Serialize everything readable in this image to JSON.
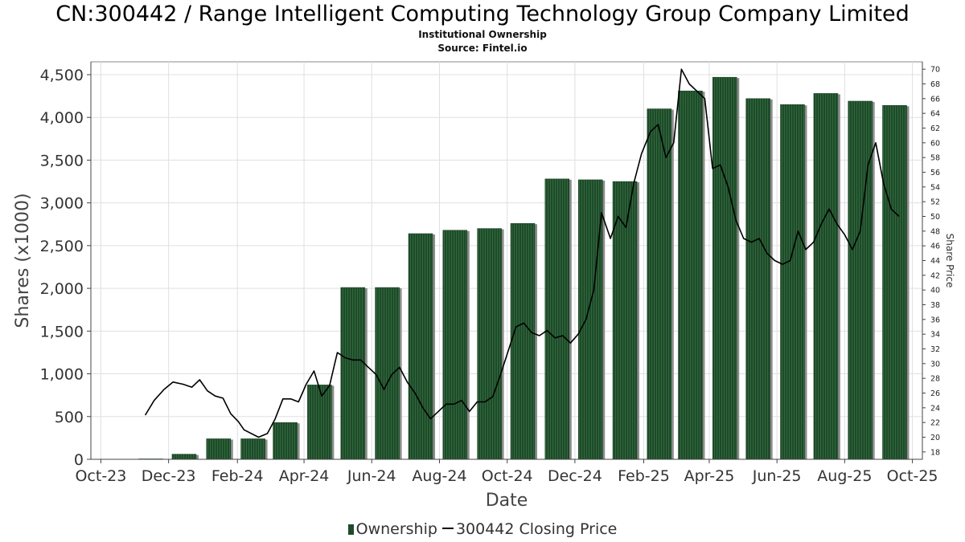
{
  "title": "CN:300442 / Range Intelligent Computing Technology Group Company Limited",
  "subtitle": "Institutional Ownership",
  "source": "Source: Fintel.io",
  "chart_data": {
    "type": "bar",
    "xlabel": "Date",
    "ylabel": "Shares (x1000)",
    "y2label": "Share Price",
    "ylim": [
      0,
      4650
    ],
    "y2lim": [
      17,
      71
    ],
    "yticks": [
      0,
      500,
      1000,
      1500,
      2000,
      2500,
      3000,
      3500,
      4000,
      4500
    ],
    "ytick_labels": [
      "0",
      "500",
      "1,000",
      "1,500",
      "2,000",
      "2,500",
      "3,000",
      "3,500",
      "4,000",
      "4,500"
    ],
    "y2ticks": [
      18,
      20,
      22,
      24,
      26,
      28,
      30,
      32,
      34,
      36,
      38,
      40,
      42,
      44,
      46,
      48,
      50,
      52,
      54,
      56,
      58,
      60,
      62,
      64,
      66,
      68,
      70
    ],
    "xlim": [
      "2023-09-22",
      "2025-10-10"
    ],
    "xticks": [
      "2023-10-01",
      "2023-12-01",
      "2024-02-01",
      "2024-04-01",
      "2024-06-01",
      "2024-08-01",
      "2024-10-01",
      "2024-12-01",
      "2025-02-01",
      "2025-04-01",
      "2025-06-01",
      "2025-08-01",
      "2025-10-01"
    ],
    "xtick_labels": [
      "Oct-23",
      "Dec-23",
      "Feb-24",
      "Apr-24",
      "Jun-24",
      "Aug-24",
      "Oct-24",
      "Dec-24",
      "Feb-25",
      "Apr-25",
      "Jun-25",
      "Aug-25",
      "Oct-25"
    ],
    "grid": true,
    "legend_position": "bottom",
    "series": [
      {
        "name": "Ownership",
        "type": "bar",
        "color": "#1f4a2a",
        "x": [
          "2023-11-15",
          "2023-12-15",
          "2024-01-15",
          "2024-02-15",
          "2024-03-15",
          "2024-04-15",
          "2024-05-15",
          "2024-06-15",
          "2024-07-15",
          "2024-08-15",
          "2024-09-15",
          "2024-10-15",
          "2024-11-15",
          "2024-12-15",
          "2025-01-15",
          "2025-02-15",
          "2025-03-15",
          "2025-04-15",
          "2025-05-15",
          "2025-06-15",
          "2025-07-15",
          "2025-08-15",
          "2025-09-15"
        ],
        "values": [
          5,
          60,
          240,
          240,
          430,
          870,
          2010,
          2010,
          2640,
          2680,
          2700,
          2760,
          3280,
          3270,
          3250,
          4100,
          4310,
          4470,
          4220,
          4150,
          4280,
          4190,
          4140
        ]
      },
      {
        "name": "300442 Closing Price",
        "type": "line",
        "color": "#000000",
        "axis": "right",
        "x": [
          "2023-11-10",
          "2023-11-18",
          "2023-11-27",
          "2023-12-05",
          "2023-12-14",
          "2023-12-22",
          "2023-12-29",
          "2024-01-05",
          "2024-01-12",
          "2024-01-19",
          "2024-01-26",
          "2024-02-02",
          "2024-02-07",
          "2024-02-20",
          "2024-02-28",
          "2024-03-06",
          "2024-03-13",
          "2024-03-20",
          "2024-03-27",
          "2024-04-03",
          "2024-04-10",
          "2024-04-17",
          "2024-04-24",
          "2024-05-01",
          "2024-05-08",
          "2024-05-15",
          "2024-05-22",
          "2024-05-29",
          "2024-06-05",
          "2024-06-12",
          "2024-06-19",
          "2024-06-26",
          "2024-07-03",
          "2024-07-10",
          "2024-07-17",
          "2024-07-24",
          "2024-07-31",
          "2024-08-07",
          "2024-08-14",
          "2024-08-21",
          "2024-08-28",
          "2024-09-04",
          "2024-09-11",
          "2024-09-18",
          "2024-09-25",
          "2024-10-09",
          "2024-10-16",
          "2024-10-23",
          "2024-10-30",
          "2024-11-06",
          "2024-11-13",
          "2024-11-20",
          "2024-11-27",
          "2024-12-04",
          "2024-12-11",
          "2024-12-18",
          "2024-12-25",
          "2025-01-02",
          "2025-01-09",
          "2025-01-16",
          "2025-01-23",
          "2025-01-30",
          "2025-02-07",
          "2025-02-14",
          "2025-02-21",
          "2025-02-28",
          "2025-03-07",
          "2025-03-14",
          "2025-03-21",
          "2025-03-28",
          "2025-04-04",
          "2025-04-11",
          "2025-04-18",
          "2025-04-25",
          "2025-05-02",
          "2025-05-09",
          "2025-05-16",
          "2025-05-23",
          "2025-05-30",
          "2025-06-06",
          "2025-06-13",
          "2025-06-20",
          "2025-06-27",
          "2025-07-04",
          "2025-07-11",
          "2025-07-18",
          "2025-07-25",
          "2025-08-01",
          "2025-08-08",
          "2025-08-15",
          "2025-08-22",
          "2025-08-29",
          "2025-09-05",
          "2025-09-12",
          "2025-09-19"
        ],
        "values": [
          23,
          25,
          26.5,
          27.5,
          27.2,
          26.8,
          27.8,
          26.3,
          25.6,
          25.3,
          23.2,
          22.1,
          21,
          20,
          20.5,
          22.5,
          25.2,
          25.2,
          24.8,
          27.2,
          29,
          25.6,
          27,
          31.5,
          30.8,
          30.5,
          30.5,
          29.5,
          28.5,
          26.5,
          28.5,
          29.5,
          27.5,
          26,
          24,
          22.5,
          23.5,
          24.5,
          24.5,
          25,
          23.5,
          24.8,
          24.8,
          25.5,
          28.5,
          35,
          35.5,
          34.2,
          33.8,
          34.5,
          33.5,
          33.8,
          32.8,
          34,
          36,
          40,
          50.5,
          47,
          50,
          48.5,
          54.5,
          58.5,
          61.5,
          62.5,
          58,
          60,
          70,
          68,
          67,
          66,
          56.5,
          57,
          54,
          49.5,
          47,
          46.5,
          47,
          45,
          44,
          43.5,
          44,
          48,
          45.5,
          46.5,
          49,
          51,
          49,
          47.5,
          45.5,
          48,
          57,
          60,
          54.5,
          51,
          50
        ]
      }
    ]
  }
}
